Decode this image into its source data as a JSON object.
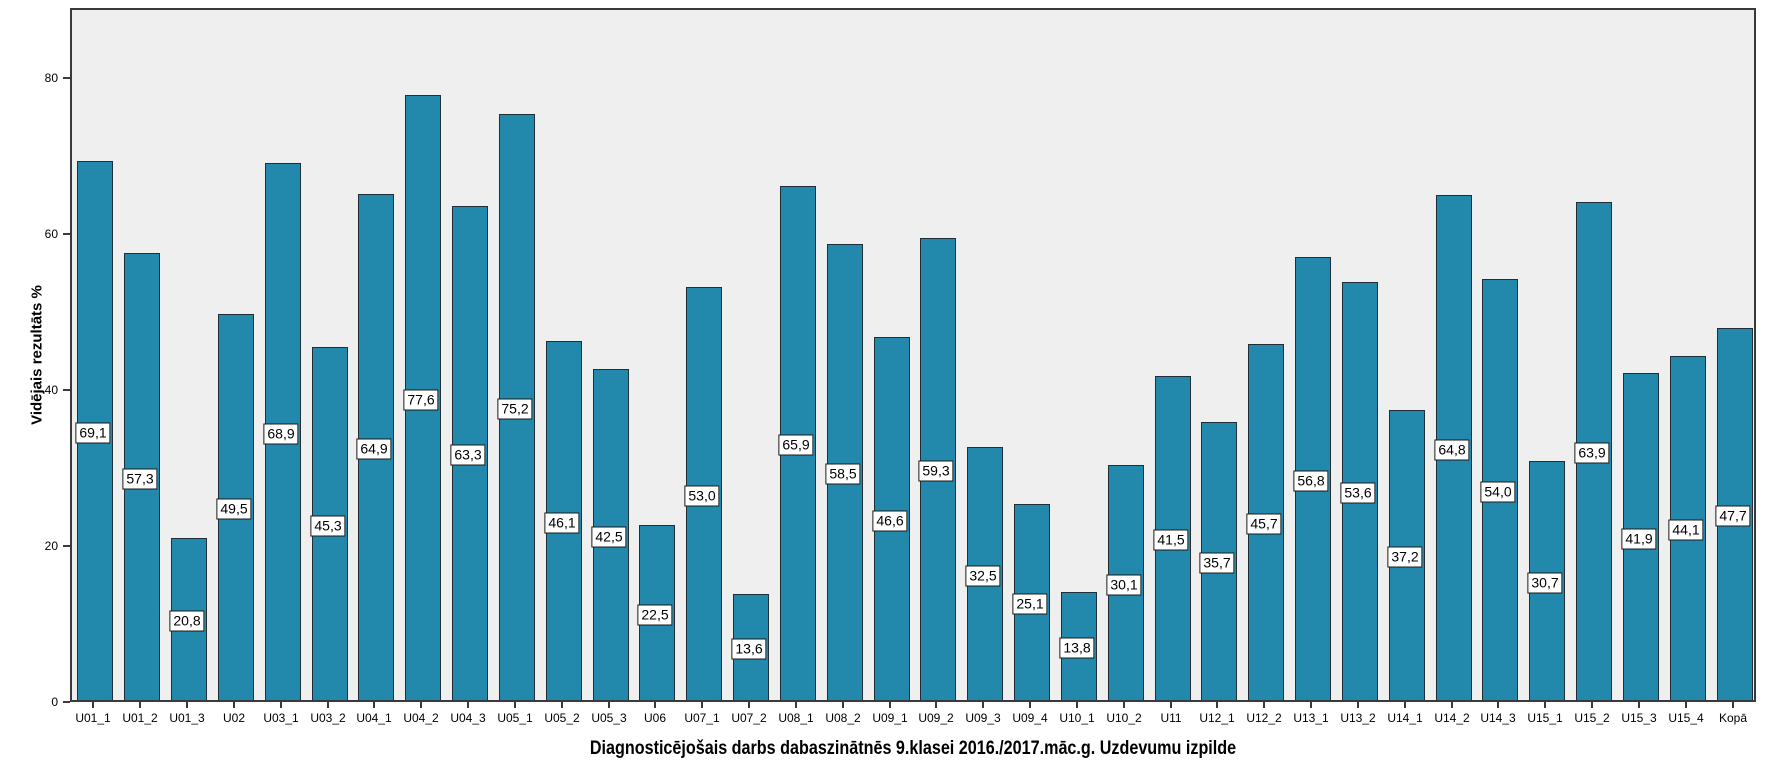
{
  "chart_data": {
    "type": "bar",
    "title": "",
    "xlabel": "Diagnosticējošais darbs dabaszinātnēs 9.klasei 2016./2017.māc.g. Uzdevumu izpilde",
    "ylabel": "Vidējais rezultāts %",
    "categories": [
      "U01_1",
      "U01_2",
      "U01_3",
      "U02",
      "U03_1",
      "U03_2",
      "U04_1",
      "U04_2",
      "U04_3",
      "U05_1",
      "U05_2",
      "U05_3",
      "U06",
      "U07_1",
      "U07_2",
      "U08_1",
      "U08_2",
      "U09_1",
      "U09_2",
      "U09_3",
      "U09_4",
      "U10_1",
      "U10_2",
      "U11",
      "U12_1",
      "U12_2",
      "U13_1",
      "U13_2",
      "U14_1",
      "U14_2",
      "U14_3",
      "U15_1",
      "U15_2",
      "U15_3",
      "U15_4",
      "Kopā"
    ],
    "values": [
      69.1,
      57.3,
      20.8,
      49.5,
      68.9,
      45.3,
      64.9,
      77.6,
      63.3,
      75.2,
      46.1,
      42.5,
      22.5,
      53.0,
      13.6,
      65.9,
      58.5,
      46.6,
      59.3,
      32.5,
      25.1,
      13.8,
      30.1,
      41.5,
      35.7,
      45.7,
      56.8,
      53.6,
      37.2,
      64.8,
      54.0,
      30.7,
      63.9,
      41.9,
      44.1,
      47.7
    ],
    "value_labels": [
      "69,1",
      "57,3",
      "20,8",
      "49,5",
      "68,9",
      "45,3",
      "64,9",
      "77,6",
      "63,3",
      "75,2",
      "46,1",
      "42,5",
      "22,5",
      "53,0",
      "13,6",
      "65,9",
      "58,5",
      "46,6",
      "59,3",
      "32,5",
      "25,1",
      "13,8",
      "30,1",
      "41,5",
      "35,7",
      "45,7",
      "56,8",
      "53,6",
      "37,2",
      "64,8",
      "54,0",
      "30,7",
      "63,9",
      "41,9",
      "44,1",
      "47,7"
    ],
    "yticks": [
      0,
      20,
      40,
      60,
      80
    ],
    "ylim": [
      0,
      89
    ],
    "grid": false,
    "legend_position": "none",
    "colors": {
      "bar_fill": "#2389ac",
      "bar_border": "#1e2f38",
      "plot_background": "#efefef",
      "frame_border": "#3a3a3a",
      "value_box_background": "#ffffff",
      "value_box_border": "#1a1a1a"
    }
  }
}
